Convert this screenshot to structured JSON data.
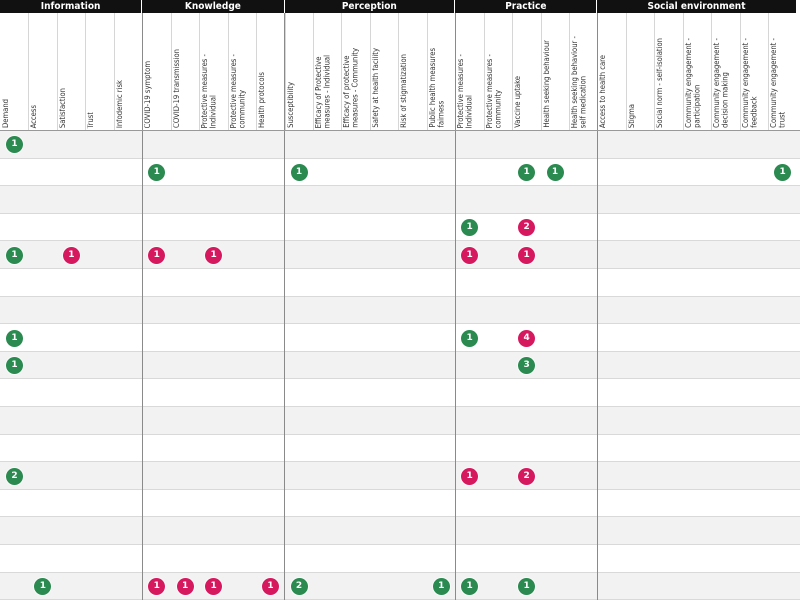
{
  "colors": {
    "green": "#2a8a4f",
    "magenta": "#d6195f",
    "header_bg": "#111111"
  },
  "groups": [
    {
      "name": "Information",
      "start": 0,
      "end": 5
    },
    {
      "name": "Knowledge",
      "start": 5,
      "end": 10
    },
    {
      "name": "Perception",
      "start": 10,
      "end": 16
    },
    {
      "name": "Practice",
      "start": 16,
      "end": 21
    },
    {
      "name": "Social environment",
      "start": 21,
      "end": 28
    }
  ],
  "columns": [
    "Demand",
    "Access",
    "Satisfaction",
    "Trust",
    "Infodemic risk",
    "COVID-19 symptom",
    "COVID-19 transmission",
    "Protective measures -\nIndividual",
    "Protective measures -\ncommunity",
    "Health protocols",
    "Susceptibility",
    "Efficacy of Protective\nmeasures - Individual",
    "Efficacy of protective\nmeasures - Community",
    "Safety at health facility",
    "Risk of stigmatization",
    "Public health measures\nfairness",
    "Protective measures -\nIndividual",
    "Protective measures -\ncommunity",
    "Vaccine uptake",
    "Health seeking behaviour",
    "Health seeking behaviour -\nself medication",
    "Access to health care",
    "Stigma",
    "Social norm - self-isolation",
    "Community engagement -\nparticipation",
    "Community engagement -\ndecision making",
    "Community engagement -\nfeedback",
    "Community engagement -\ntrust"
  ],
  "chart_data": {
    "type": "table",
    "row_count": 17,
    "series": [
      {
        "name": "green",
        "color": "#2a8a4f"
      },
      {
        "name": "magenta",
        "color": "#d6195f"
      }
    ],
    "cells": [
      {
        "row": 0,
        "col": 0,
        "value": 1,
        "color": "green"
      },
      {
        "row": 1,
        "col": 5,
        "value": 1,
        "color": "green"
      },
      {
        "row": 1,
        "col": 10,
        "value": 1,
        "color": "green"
      },
      {
        "row": 1,
        "col": 18,
        "value": 1,
        "color": "green"
      },
      {
        "row": 1,
        "col": 19,
        "value": 1,
        "color": "green"
      },
      {
        "row": 1,
        "col": 27,
        "value": 1,
        "color": "green"
      },
      {
        "row": 3,
        "col": 16,
        "value": 1,
        "color": "green"
      },
      {
        "row": 3,
        "col": 18,
        "value": 2,
        "color": "magenta"
      },
      {
        "row": 4,
        "col": 0,
        "value": 1,
        "color": "green"
      },
      {
        "row": 4,
        "col": 2,
        "value": 1,
        "color": "magenta"
      },
      {
        "row": 4,
        "col": 5,
        "value": 1,
        "color": "magenta"
      },
      {
        "row": 4,
        "col": 7,
        "value": 1,
        "color": "magenta"
      },
      {
        "row": 4,
        "col": 16,
        "value": 1,
        "color": "magenta"
      },
      {
        "row": 4,
        "col": 18,
        "value": 1,
        "color": "magenta"
      },
      {
        "row": 7,
        "col": 0,
        "value": 1,
        "color": "green"
      },
      {
        "row": 7,
        "col": 16,
        "value": 1,
        "color": "green"
      },
      {
        "row": 7,
        "col": 18,
        "value": 4,
        "color": "magenta"
      },
      {
        "row": 8,
        "col": 0,
        "value": 1,
        "color": "green"
      },
      {
        "row": 8,
        "col": 18,
        "value": 3,
        "color": "green"
      },
      {
        "row": 12,
        "col": 0,
        "value": 2,
        "color": "green"
      },
      {
        "row": 12,
        "col": 16,
        "value": 1,
        "color": "magenta"
      },
      {
        "row": 12,
        "col": 18,
        "value": 2,
        "color": "magenta"
      },
      {
        "row": 16,
        "col": 1,
        "value": 1,
        "color": "green"
      },
      {
        "row": 16,
        "col": 5,
        "value": 1,
        "color": "magenta"
      },
      {
        "row": 16,
        "col": 6,
        "value": 1,
        "color": "magenta"
      },
      {
        "row": 16,
        "col": 7,
        "value": 1,
        "color": "magenta"
      },
      {
        "row": 16,
        "col": 9,
        "value": 1,
        "color": "magenta"
      },
      {
        "row": 16,
        "col": 10,
        "value": 2,
        "color": "green"
      },
      {
        "row": 16,
        "col": 15,
        "value": 1,
        "color": "green"
      },
      {
        "row": 16,
        "col": 16,
        "value": 1,
        "color": "green"
      },
      {
        "row": 16,
        "col": 18,
        "value": 1,
        "color": "green"
      }
    ]
  }
}
